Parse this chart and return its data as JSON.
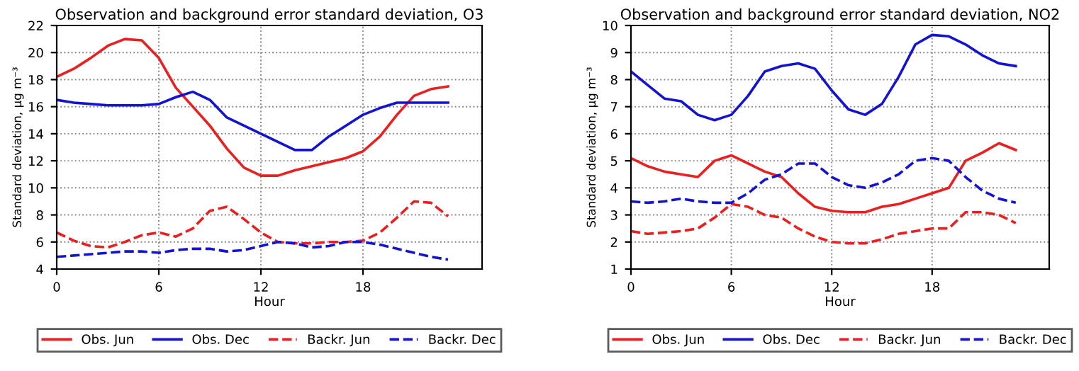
{
  "chart_data": [
    {
      "type": "line",
      "title": "Observation and background error standard deviation, O3",
      "xlabel": "Hour",
      "ylabel": "Standard deviation, μg m⁻³",
      "x": [
        0,
        1,
        2,
        3,
        4,
        5,
        6,
        7,
        8,
        9,
        10,
        11,
        12,
        13,
        14,
        15,
        16,
        17,
        18,
        19,
        20,
        21,
        22,
        23
      ],
      "xlim": [
        0,
        25
      ],
      "xticks": [
        0,
        6,
        12,
        18
      ],
      "ylim": [
        4,
        22
      ],
      "yticks": [
        4,
        6,
        8,
        10,
        12,
        14,
        16,
        18,
        20,
        22
      ],
      "grid": true,
      "legend": "bottom",
      "series": [
        {
          "name": "Obs. Jun",
          "color": "#e82020",
          "line_style": "solid",
          "values": [
            18.2,
            18.8,
            19.6,
            20.5,
            21.0,
            20.9,
            19.6,
            17.4,
            16.0,
            14.6,
            12.9,
            11.5,
            10.9,
            10.9,
            11.3,
            11.6,
            11.9,
            12.2,
            12.7,
            13.8,
            15.4,
            16.8,
            17.3,
            17.5
          ]
        },
        {
          "name": "Obs. Dec",
          "color": "#1414d0",
          "line_style": "solid",
          "values": [
            16.5,
            16.3,
            16.2,
            16.1,
            16.1,
            16.1,
            16.2,
            16.7,
            17.1,
            16.5,
            15.2,
            14.6,
            14.0,
            13.4,
            12.8,
            12.8,
            13.8,
            14.6,
            15.4,
            15.9,
            16.3,
            16.3,
            16.3,
            16.3
          ]
        },
        {
          "name": "Backr. Jun",
          "color": "#e82020",
          "line_style": "dashed",
          "values": [
            6.7,
            6.1,
            5.7,
            5.6,
            6.0,
            6.5,
            6.7,
            6.4,
            7.0,
            8.3,
            8.6,
            7.7,
            6.7,
            6.0,
            5.9,
            5.9,
            6.0,
            6.0,
            6.1,
            6.7,
            7.8,
            9.0,
            8.9,
            7.9
          ]
        },
        {
          "name": "Backr. Dec",
          "color": "#1414d0",
          "line_style": "dashed",
          "values": [
            4.9,
            5.0,
            5.1,
            5.2,
            5.3,
            5.3,
            5.2,
            5.4,
            5.5,
            5.5,
            5.3,
            5.4,
            5.7,
            6.0,
            5.9,
            5.6,
            5.7,
            6.0,
            6.0,
            5.8,
            5.5,
            5.2,
            4.9,
            4.7
          ]
        }
      ]
    },
    {
      "type": "line",
      "title": "Observation and background error standard deviation, NO2",
      "xlabel": "Hour",
      "ylabel": "Standard deviation, μg m⁻³",
      "x": [
        0,
        1,
        2,
        3,
        4,
        5,
        6,
        7,
        8,
        9,
        10,
        11,
        12,
        13,
        14,
        15,
        16,
        17,
        18,
        19,
        20,
        21,
        22,
        23
      ],
      "xlim": [
        0,
        25
      ],
      "xticks": [
        0,
        6,
        12,
        18
      ],
      "ylim": [
        1,
        10
      ],
      "yticks": [
        1,
        2,
        3,
        4,
        5,
        6,
        7,
        8,
        9,
        10
      ],
      "grid": true,
      "legend": "bottom",
      "series": [
        {
          "name": "Obs. Jun",
          "color": "#e82020",
          "line_style": "solid",
          "values": [
            5.1,
            4.8,
            4.6,
            4.5,
            4.4,
            5.0,
            5.2,
            4.9,
            4.6,
            4.4,
            3.8,
            3.3,
            3.15,
            3.1,
            3.1,
            3.3,
            3.4,
            3.6,
            3.8,
            4.0,
            5.0,
            5.3,
            5.65,
            5.4
          ]
        },
        {
          "name": "Obs. Dec",
          "color": "#1414d0",
          "line_style": "solid",
          "values": [
            8.3,
            7.8,
            7.3,
            7.2,
            6.7,
            6.5,
            6.7,
            7.4,
            8.3,
            8.5,
            8.6,
            8.4,
            7.6,
            6.9,
            6.7,
            7.1,
            8.1,
            9.3,
            9.65,
            9.6,
            9.3,
            8.9,
            8.6,
            8.5
          ]
        },
        {
          "name": "Backr. Jun",
          "color": "#e82020",
          "line_style": "dashed",
          "values": [
            2.4,
            2.3,
            2.35,
            2.4,
            2.5,
            2.9,
            3.4,
            3.3,
            3.0,
            2.9,
            2.5,
            2.2,
            2.0,
            1.95,
            1.95,
            2.1,
            2.3,
            2.4,
            2.5,
            2.5,
            3.1,
            3.1,
            3.0,
            2.7
          ]
        },
        {
          "name": "Backr. Dec",
          "color": "#1414d0",
          "line_style": "dashed",
          "values": [
            3.5,
            3.45,
            3.5,
            3.6,
            3.5,
            3.45,
            3.45,
            3.8,
            4.3,
            4.5,
            4.9,
            4.9,
            4.4,
            4.1,
            4.0,
            4.2,
            4.5,
            5.0,
            5.1,
            5.0,
            4.4,
            3.9,
            3.6,
            3.45
          ]
        }
      ]
    }
  ]
}
